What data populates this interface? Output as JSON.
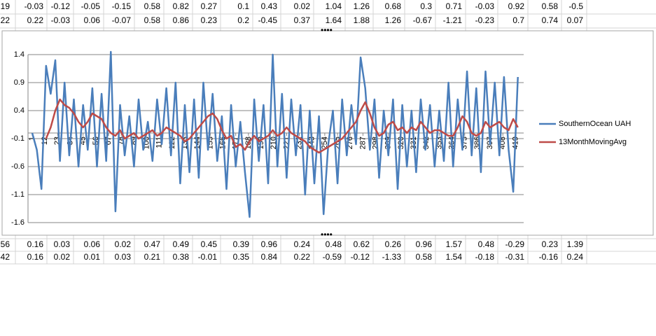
{
  "spreadsheet": {
    "rows": [
      [
        "19",
        -0.03,
        -0.12,
        -0.05,
        -0.15,
        0.58,
        0.82,
        0.27,
        0.1,
        0.43,
        0.02,
        1.04,
        1.26,
        0.68,
        0.3,
        0.71,
        -0.03,
        0.92,
        0.58,
        -0.5
      ],
      [
        "22",
        0.22,
        -0.03,
        0.06,
        -0.07,
        0.58,
        0.86,
        0.23,
        0.2,
        -0.45,
        0.37,
        1.64,
        1.88,
        1.26,
        -0.67,
        -1.21,
        -0.23,
        0.7,
        0.74,
        0.07
      ],
      [
        "56",
        0.16,
        0.03,
        0.06,
        0.02,
        0.47,
        0.49,
        0.45,
        0.39,
        0.96,
        0.24,
        0.48,
        0.62,
        0.26,
        0.96,
        1.57,
        0.48,
        -0.29,
        0.23,
        1.39
      ],
      [
        "42",
        0.16,
        0.02,
        0.01,
        0.03,
        0.21,
        0.38,
        -0.01,
        0.35,
        0.84,
        0.22,
        -0.59,
        -0.12,
        -1.33,
        0.58,
        1.54,
        -0.18,
        -0.31,
        -0.16,
        0.24
      ]
    ]
  },
  "chart_data": {
    "type": "line",
    "x": [
      1,
      5,
      9,
      13,
      17,
      21,
      25,
      29,
      33,
      37,
      41,
      45,
      49,
      53,
      57,
      61,
      65,
      69,
      73,
      77,
      81,
      85,
      89,
      93,
      97,
      101,
      105,
      109,
      113,
      117,
      121,
      125,
      129,
      133,
      137,
      141,
      145,
      149,
      153,
      157,
      161,
      165,
      169,
      173,
      177,
      181,
      185,
      189,
      193,
      197,
      201,
      205,
      209,
      213,
      217,
      221,
      225,
      229,
      233,
      237,
      241,
      245,
      249,
      253,
      257,
      261,
      265,
      269,
      273,
      277,
      281,
      285,
      289,
      293,
      297,
      301,
      305,
      309,
      313,
      317,
      321,
      325,
      329,
      333,
      337,
      341,
      345,
      349,
      353,
      357,
      361,
      365,
      369,
      373,
      377,
      381,
      385,
      389,
      393,
      397,
      401,
      405,
      409,
      413,
      417,
      421
    ],
    "series": [
      {
        "name": "SouthernOcean UAH",
        "color": "#4a7ebb",
        "values": [
          0,
          -0.3,
          -1.0,
          1.2,
          0.7,
          1.3,
          -0.5,
          0.9,
          -0.4,
          0.6,
          -0.6,
          0.5,
          -0.3,
          0.8,
          -0.6,
          0.7,
          -0.5,
          1.45,
          -1.4,
          0.5,
          -0.4,
          0.3,
          -0.6,
          0.6,
          -0.3,
          0.2,
          -0.5,
          0.6,
          -0.2,
          0.8,
          -0.4,
          0.9,
          -0.9,
          0.5,
          -0.7,
          0.6,
          -0.8,
          0.9,
          -0.3,
          0.7,
          -0.5,
          0.3,
          -1.0,
          0.5,
          -0.6,
          0.2,
          -0.7,
          -1.5,
          0.6,
          -0.5,
          0.5,
          -0.9,
          1.4,
          -0.6,
          0.7,
          -0.8,
          0.6,
          -0.4,
          0.5,
          -1.1,
          0.4,
          -0.9,
          0.3,
          -1.45,
          -0.2,
          0.4,
          -0.9,
          0.6,
          -0.4,
          0.5,
          -0.2,
          1.35,
          0.8,
          -0.3,
          0.6,
          -0.8,
          0.4,
          -0.4,
          0.6,
          -1.0,
          0.5,
          -0.6,
          0.4,
          -0.7,
          0.6,
          -0.3,
          0.5,
          -0.6,
          0.4,
          -0.5,
          0.9,
          -0.6,
          0.6,
          -0.3,
          1.1,
          -0.4,
          0.8,
          -0.7,
          1.1,
          -0.2,
          0.9,
          -0.4,
          1.0,
          -0.3,
          -1.05,
          1.0
        ]
      },
      {
        "name": "13MonthMovingAvg",
        "color": "#be4b48",
        "values": [
          null,
          null,
          null,
          -0.1,
          0.1,
          0.4,
          0.6,
          0.5,
          0.45,
          0.35,
          0.2,
          0.1,
          0.2,
          0.35,
          0.3,
          0.25,
          0.1,
          0,
          -0.05,
          0.05,
          -0.1,
          -0.05,
          0,
          -0.1,
          -0.05,
          0,
          0.05,
          -0.05,
          0,
          0.1,
          0.05,
          0,
          -0.05,
          -0.15,
          -0.1,
          0,
          0.1,
          0.2,
          0.3,
          0.35,
          0.25,
          0.05,
          -0.1,
          -0.05,
          -0.25,
          -0.2,
          -0.3,
          -0.15,
          -0.05,
          -0.15,
          -0.1,
          -0.05,
          0.05,
          -0.05,
          0,
          0.1,
          0,
          -0.05,
          -0.1,
          -0.15,
          -0.25,
          -0.3,
          -0.35,
          -0.3,
          -0.25,
          -0.2,
          -0.15,
          -0.1,
          0,
          0.1,
          0.2,
          0.4,
          0.55,
          0.35,
          0.1,
          -0.05,
          0,
          0.15,
          0.2,
          0.05,
          0.1,
          0,
          0.1,
          0.05,
          0.2,
          0.1,
          0,
          0.05,
          0.05,
          0,
          -0.05,
          -0.05,
          0.1,
          0.3,
          0.2,
          0,
          -0.05,
          0,
          0.2,
          0.1,
          0.15,
          0.2,
          0.1,
          0.05,
          0.25,
          0.1
        ]
      }
    ],
    "xlim": [
      1,
      426
    ],
    "xticks": [
      1,
      12,
      23,
      34,
      45,
      56,
      67,
      78,
      89,
      100,
      111,
      122,
      133,
      144,
      155,
      166,
      177,
      188,
      199,
      210,
      221,
      232,
      243,
      254,
      265,
      276,
      287,
      298,
      309,
      320,
      331,
      342,
      353,
      364,
      375,
      386,
      397,
      408,
      419
    ],
    "ylim": [
      -1.6,
      1.4
    ],
    "yticks": [
      1.4,
      0.9,
      0.4,
      -0.1,
      -0.6,
      -1.1,
      -1.6
    ],
    "grid": true,
    "legend": "right"
  }
}
